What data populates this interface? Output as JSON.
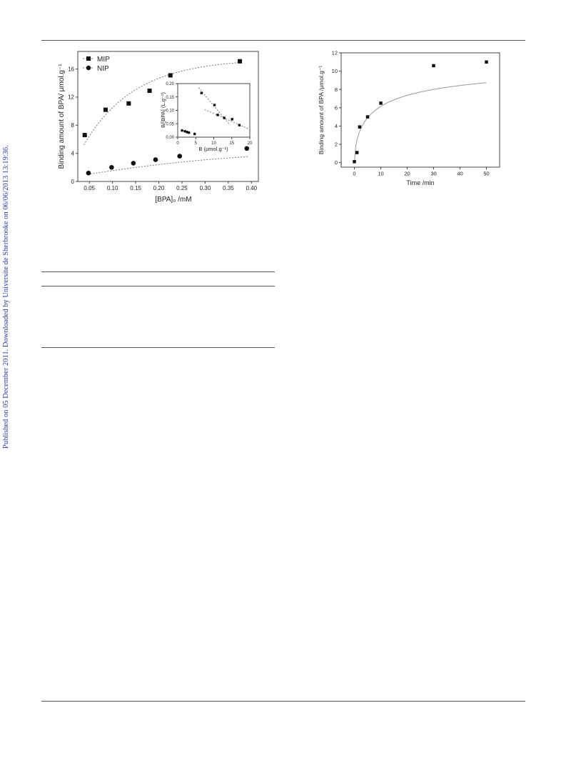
{
  "sidebar": {
    "text": "Published on 05 December 2011. Downloaded by Universite de Sherbrooke on 06/06/2013 13:19:36."
  },
  "chart_data": [
    {
      "type": "scatter",
      "xlabel": "[BPA]₀ /mM",
      "ylabel": "Binding amount of BPA/ μmol.g⁻¹",
      "xlim": [
        0.025,
        0.415
      ],
      "ylim": [
        0,
        18.5
      ],
      "xticks": [
        "0.05",
        "0.10",
        "0.15",
        "0.20",
        "0.25",
        "0.30",
        "0.35",
        "0.40"
      ],
      "yticks": [
        "0",
        "4",
        "8",
        "12",
        "16"
      ],
      "grid": false,
      "legend": "top-left",
      "series": [
        {
          "name": "MIP",
          "marker": "square",
          "fit": "dotted",
          "x": [
            0.04,
            0.085,
            0.135,
            0.18,
            0.225,
            0.375
          ],
          "y": [
            6.6,
            10.2,
            11.1,
            12.9,
            15.1,
            17.1
          ]
        },
        {
          "name": "NIP",
          "marker": "circle",
          "fit": "dotted",
          "x": [
            0.048,
            0.098,
            0.145,
            0.193,
            0.245,
            0.39
          ],
          "y": [
            1.2,
            2.0,
            2.6,
            3.1,
            3.6,
            4.7
          ]
        }
      ],
      "inset": {
        "type": "scatter",
        "xlabel": "B (μmol.g⁻¹)",
        "ylabel": "B/[BPA] (L.g⁻¹)",
        "xlim": [
          0,
          20
        ],
        "ylim": [
          0,
          0.2
        ],
        "xticks": [
          "0",
          "5",
          "10",
          "15",
          "20"
        ],
        "yticks": [
          "0.00",
          "0.05",
          "0.10",
          "0.15",
          "0.20"
        ],
        "series": [
          {
            "marker": "square",
            "fit": "dotted",
            "x": [
              6.6,
              10.2,
              11.1,
              12.9,
              15.1,
              17.1
            ],
            "y": [
              0.165,
              0.12,
              0.083,
              0.072,
              0.067,
              0.045
            ]
          },
          {
            "marker": "circle",
            "x": [
              1.2,
              2.0,
              2.6,
              3.1,
              4.7
            ],
            "y": [
              0.025,
              0.022,
              0.019,
              0.017,
              0.012
            ]
          }
        ]
      }
    },
    {
      "type": "scatter",
      "xlabel": "Time /min",
      "ylabel": "Binding amount of BPA /μmol.g⁻¹",
      "xlim": [
        -5,
        55
      ],
      "ylim": [
        -0.5,
        12
      ],
      "xticks": [
        "0",
        "10",
        "20",
        "30",
        "40",
        "50"
      ],
      "yticks": [
        "0",
        "2",
        "4",
        "6",
        "8",
        "10",
        "12"
      ],
      "grid": false,
      "series": [
        {
          "marker": "square",
          "fit": "solid",
          "x": [
            0,
            1,
            2,
            5,
            10,
            30,
            50
          ],
          "y": [
            0.1,
            1.1,
            3.9,
            5.0,
            6.5,
            10.6,
            11.0
          ]
        }
      ]
    }
  ]
}
